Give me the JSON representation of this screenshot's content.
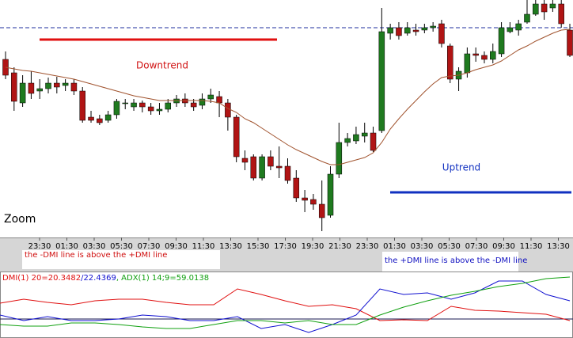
{
  "chart_data": [
    {
      "type": "candlestick",
      "up_color": "#1f7a1f",
      "down_color": "#b01414",
      "ylim": [
        0,
        300
      ],
      "open": [
        225,
        208,
        170,
        195,
        185,
        188,
        195,
        192,
        195,
        185,
        152,
        150,
        148,
        155,
        170,
        165,
        170,
        165,
        160,
        162,
        170,
        175,
        170,
        167,
        175,
        178,
        170,
        152,
        100,
        102,
        75,
        102,
        90,
        90,
        75,
        50,
        48,
        42,
        28,
        80,
        120,
        122,
        128,
        132,
        135,
        258,
        265,
        258,
        262,
        262,
        265,
        270,
        242,
        200,
        208,
        232,
        230,
        225,
        232,
        260,
        262,
        272,
        282,
        295,
        290,
        295,
        262
      ],
      "high": [
        235,
        215,
        205,
        210,
        200,
        202,
        203,
        200,
        200,
        190,
        160,
        155,
        160,
        175,
        175,
        175,
        173,
        170,
        170,
        175,
        180,
        182,
        175,
        182,
        188,
        185,
        175,
        155,
        110,
        105,
        105,
        110,
        115,
        100,
        85,
        60,
        55,
        72,
        90,
        145,
        132,
        140,
        145,
        140,
        290,
        270,
        272,
        272,
        270,
        270,
        272,
        275,
        245,
        215,
        240,
        240,
        235,
        245,
        272,
        272,
        275,
        300,
        300,
        300,
        300,
        300,
        270
      ],
      "low": [
        200,
        160,
        165,
        175,
        175,
        182,
        182,
        185,
        180,
        145,
        145,
        142,
        145,
        150,
        162,
        160,
        158,
        155,
        155,
        158,
        165,
        165,
        160,
        162,
        170,
        152,
        135,
        95,
        85,
        72,
        72,
        85,
        75,
        68,
        45,
        32,
        35,
        8,
        25,
        75,
        115,
        118,
        120,
        108,
        132,
        250,
        250,
        255,
        255,
        258,
        260,
        240,
        195,
        185,
        202,
        222,
        220,
        220,
        228,
        258,
        255,
        270,
        280,
        275,
        285,
        265,
        228
      ],
      "close": [
        205,
        172,
        195,
        182,
        188,
        195,
        190,
        195,
        185,
        148,
        148,
        145,
        155,
        172,
        170,
        170,
        165,
        160,
        162,
        170,
        175,
        170,
        165,
        175,
        180,
        170,
        152,
        102,
        95,
        75,
        102,
        90,
        88,
        72,
        50,
        47,
        42,
        25,
        80,
        120,
        125,
        130,
        132,
        110,
        260,
        265,
        255,
        265,
        260,
        265,
        267,
        245,
        200,
        210,
        232,
        230,
        225,
        235,
        265,
        265,
        270,
        282,
        295,
        285,
        295,
        270,
        230
      ],
      "ma": {
        "color": "#a0522d",
        "values": [
          215,
          213,
          211,
          210,
          208,
          206,
          204,
          202,
          200,
          197,
          194,
          191,
          188,
          185,
          182,
          179,
          177,
          175,
          173,
          173,
          173,
          173,
          173,
          173,
          172,
          170,
          163,
          158,
          150,
          145,
          138,
          131,
          124,
          117,
          111,
          106,
          101,
          96,
          92,
          92,
          95,
          98,
          101,
          107,
          120,
          137,
          150,
          162,
          173,
          184,
          194,
          202,
          204,
          205,
          208,
          212,
          215,
          218,
          223,
          230,
          237,
          242,
          248,
          253,
          258,
          262,
          263
        ]
      },
      "hline": {
        "value": 265,
        "color": "#1c2c9c"
      },
      "time_labels": [
        "23:30",
        "01:30",
        "03:30",
        "05:30",
        "07:30",
        "09:30",
        "11:30",
        "13:30",
        "15:30",
        "17:30",
        "19:30",
        "21:30",
        "23:30",
        "01:30",
        "03:30",
        "05:30",
        "07:30",
        "09:30",
        "11:30",
        "13:30"
      ],
      "annotations": [
        "Downtrend",
        "Uptrend",
        "Zoom"
      ],
      "notes": [
        "the -DMI line is above the +DMI line",
        "the +DMI line is above the -DMI line"
      ]
    },
    {
      "type": "line",
      "ylim": [
        0,
        80
      ],
      "hline": {
        "value": 24,
        "color": "#1a1a50"
      },
      "series": [
        {
          "name": "DMI(1) 20=20.3482",
          "color": "#e01010",
          "values": [
            44,
            49,
            45,
            42,
            47,
            49,
            49,
            45,
            42,
            42,
            62,
            55,
            47,
            40,
            42,
            37,
            22,
            23,
            22,
            40,
            35,
            34,
            32,
            30,
            22
          ]
        },
        {
          "name": "/22.4369",
          "color": "#1010d0",
          "values": [
            29,
            22,
            27,
            22,
            22,
            24,
            29,
            27,
            22,
            22,
            27,
            12,
            17,
            7,
            17,
            29,
            62,
            55,
            57,
            49,
            57,
            72,
            72,
            55,
            47
          ]
        },
        {
          "name": ", ADX(1) 14;9=59.0138",
          "color": "#10a010",
          "values": [
            17,
            15,
            15,
            19,
            19,
            17,
            14,
            12,
            12,
            17,
            22,
            22,
            19,
            22,
            17,
            17,
            29,
            39,
            47,
            54,
            59,
            65,
            69,
            75,
            77
          ]
        }
      ]
    }
  ]
}
